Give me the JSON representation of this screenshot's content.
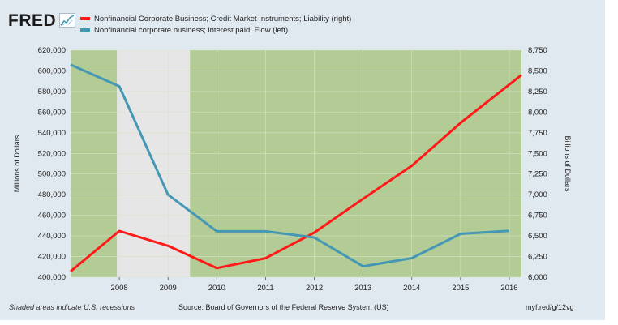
{
  "header": {
    "logo_text": "FRED",
    "logo_icon": "line-graph-icon"
  },
  "colors": {
    "background": "#e1e9f0",
    "plot_background": "#b3cb94",
    "recession_band": "#e6e6e6",
    "series_red": "#ff1a1a",
    "series_blue": "#4498b4"
  },
  "footer": {
    "note": "Shaded areas indicate U.S. recessions",
    "source": "Source: Board of Governors of the Federal Reserve System (US)",
    "url": "myf.red/g/12vg"
  },
  "chart_data": {
    "type": "line",
    "title": "",
    "x": [
      "2007",
      "2008",
      "2009",
      "2010",
      "2011",
      "2012",
      "2013",
      "2014",
      "2015",
      "2016",
      "2016.3"
    ],
    "xtick_labels": [
      "2008",
      "2009",
      "2010",
      "2011",
      "2012",
      "2013",
      "2014",
      "2015",
      "2016"
    ],
    "xlim": [
      2007.0,
      2016.25
    ],
    "recession": {
      "start": 2007.95,
      "end": 2009.45
    },
    "left_axis": {
      "label": "Millions of Dollars",
      "ylim": [
        400000,
        620000
      ],
      "tick_labels": [
        "400,000",
        "420,000",
        "440,000",
        "460,000",
        "480,000",
        "500,000",
        "520,000",
        "540,000",
        "560,000",
        "580,000",
        "600,000",
        "620,000"
      ]
    },
    "right_axis": {
      "label": "Billions of Dollars",
      "ylim": [
        6000,
        8750
      ],
      "tick_labels": [
        "6,000",
        "6,250",
        "6,500",
        "6,750",
        "7,000",
        "7,250",
        "7,500",
        "7,750",
        "8,000",
        "8,250",
        "8,500",
        "8,750"
      ]
    },
    "series": [
      {
        "name": "Nonfinancial Corporate Business; Credit Market Instruments; Liability (right)",
        "axis": "right",
        "color": "#ff1a1a",
        "points": [
          [
            2007.0,
            6070
          ],
          [
            2008.0,
            6560
          ],
          [
            2009.0,
            6380
          ],
          [
            2010.0,
            6110
          ],
          [
            2011.0,
            6230
          ],
          [
            2012.0,
            6540
          ],
          [
            2013.0,
            6950
          ],
          [
            2014.0,
            7350
          ],
          [
            2015.0,
            7870
          ],
          [
            2016.25,
            8450
          ]
        ]
      },
      {
        "name": "Nonfinancial corporate business; interest paid, Flow (left)",
        "axis": "left",
        "color": "#4498b4",
        "points": [
          [
            2007.0,
            606000
          ],
          [
            2008.0,
            585000
          ],
          [
            2009.0,
            480000
          ],
          [
            2010.0,
            444500
          ],
          [
            2011.0,
            444500
          ],
          [
            2012.0,
            438500
          ],
          [
            2013.0,
            410500
          ],
          [
            2014.0,
            418500
          ],
          [
            2015.0,
            442000
          ],
          [
            2016.0,
            445000
          ]
        ]
      }
    ]
  }
}
